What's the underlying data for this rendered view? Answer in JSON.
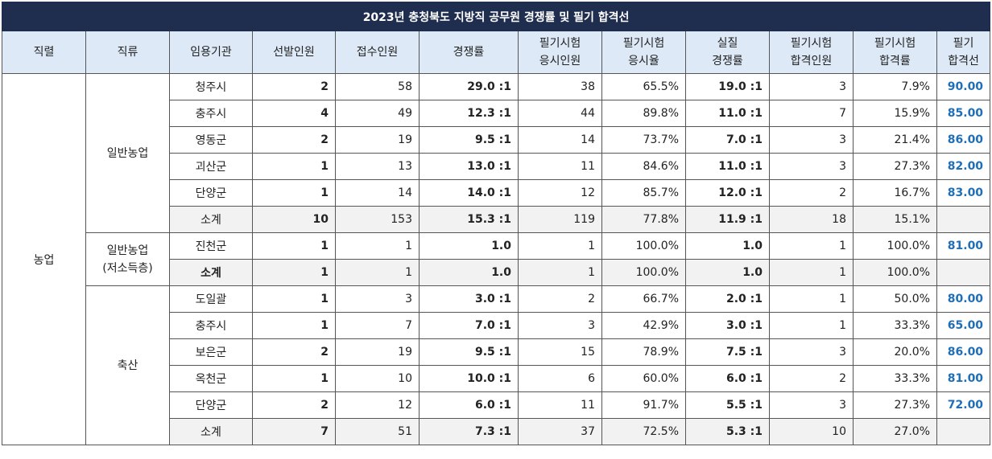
{
  "title": "2023년 충청북도 지방직 공무원 경쟁률 및 필기 합격선",
  "headers": [
    "직렬",
    "직류",
    "임용기관",
    "선발인원",
    "접수인원",
    "경쟁률",
    "필기시험\n응시인원",
    "필기시험\n응시율",
    "실질\n경쟁률",
    "필기시험\n합격인원",
    "필기시험\n합격률",
    "필기\n합격선"
  ],
  "series_name": "농업",
  "groups": [
    {
      "name": "일반농업",
      "rows": [
        [
          "청주시",
          "2",
          "58",
          "29.0 :1",
          "38",
          "65.5%",
          "19.0 :1",
          "3",
          "7.9%",
          "90.00"
        ],
        [
          "충주시",
          "4",
          "49",
          "12.3 :1",
          "44",
          "89.8%",
          "11.0 :1",
          "7",
          "15.9%",
          "85.00"
        ],
        [
          "영동군",
          "2",
          "19",
          "9.5 :1",
          "14",
          "73.7%",
          "7.0 :1",
          "3",
          "21.4%",
          "86.00"
        ],
        [
          "괴산군",
          "1",
          "13",
          "13.0 :1",
          "11",
          "84.6%",
          "11.0 :1",
          "3",
          "27.3%",
          "82.00"
        ],
        [
          "단양군",
          "1",
          "14",
          "14.0 :1",
          "12",
          "85.7%",
          "12.0 :1",
          "2",
          "16.7%",
          "83.00"
        ]
      ],
      "subtotal": [
        "소계",
        "10",
        "153",
        "15.3 :1",
        "119",
        "77.8%",
        "11.9 :1",
        "18",
        "15.1%",
        ""
      ]
    },
    {
      "name": "일반농업\n(저소득층)",
      "rows": [
        [
          "진천군",
          "1",
          "1",
          "1.0",
          "1",
          "100.0%",
          "1.0",
          "1",
          "100.0%",
          "81.00"
        ]
      ],
      "subtotal": [
        "소계",
        "1",
        "1",
        "1.0",
        "1",
        "100.0%",
        "1.0",
        "1",
        "100.0%",
        ""
      ]
    },
    {
      "name": "축산",
      "rows": [
        [
          "도일괄",
          "1",
          "3",
          "3.0 :1",
          "2",
          "66.7%",
          "2.0 :1",
          "1",
          "50.0%",
          "80.00"
        ],
        [
          "충주시",
          "1",
          "7",
          "7.0 :1",
          "3",
          "42.9%",
          "3.0 :1",
          "1",
          "33.3%",
          "65.00"
        ],
        [
          "보은군",
          "2",
          "19",
          "9.5 :1",
          "15",
          "78.9%",
          "7.5 :1",
          "3",
          "20.0%",
          "86.00"
        ],
        [
          "옥천군",
          "1",
          "10",
          "10.0 :1",
          "6",
          "60.0%",
          "6.0 :1",
          "2",
          "33.3%",
          "81.00"
        ],
        [
          "단양군",
          "2",
          "12",
          "6.0 :1",
          "11",
          "91.7%",
          "5.5 :1",
          "3",
          "27.3%",
          "72.00"
        ]
      ],
      "subtotal": [
        "소계",
        "7",
        "51",
        "7.3 :1",
        "37",
        "72.5%",
        "5.3 :1",
        "10",
        "27.0%",
        ""
      ]
    }
  ]
}
